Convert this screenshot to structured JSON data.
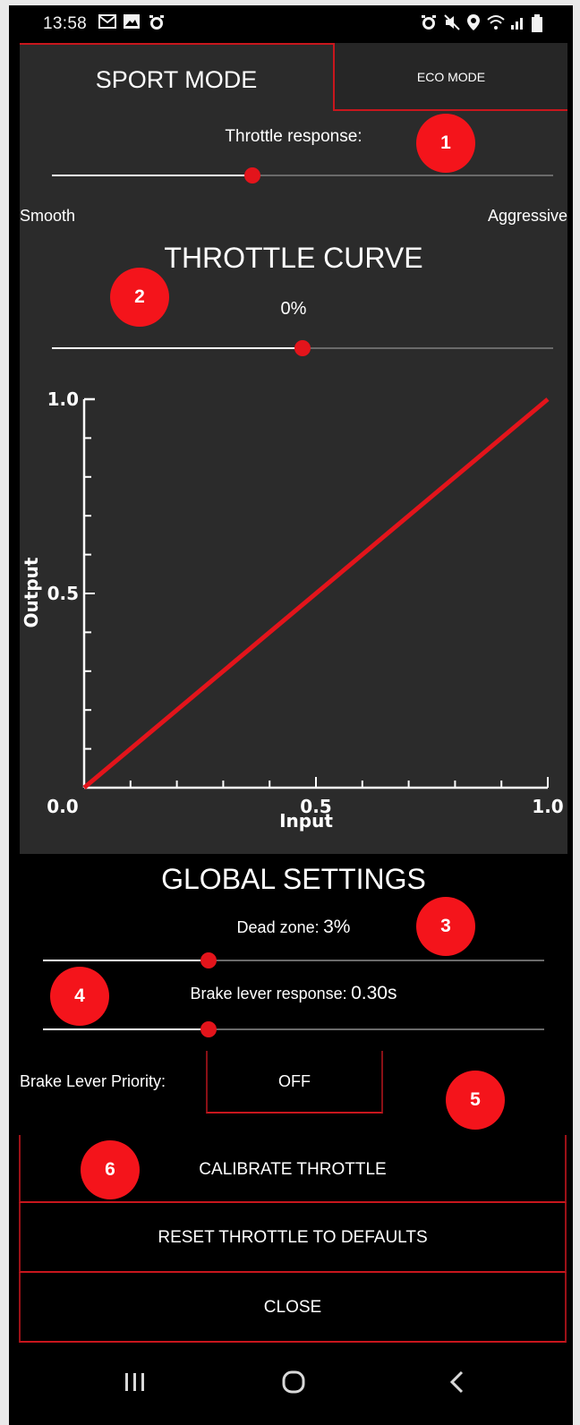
{
  "status_bar": {
    "time": "13:58",
    "left_icons": [
      "gmail-icon",
      "gallery-icon",
      "alarm-icon"
    ],
    "right_icons": [
      "alarm-icon",
      "mute-icon",
      "location-icon",
      "wifi-icon",
      "signal-icon",
      "battery-icon"
    ]
  },
  "tabs": [
    {
      "label": "SPORT MODE",
      "active": true
    },
    {
      "label": "ECO MODE",
      "active": false
    }
  ],
  "throttle_response": {
    "label": "Throttle response:",
    "value": 0.4,
    "min_label": "Smooth",
    "max_label": "Aggressive"
  },
  "throttle_curve": {
    "title": "THROTTLE CURVE",
    "value_text": "0%",
    "value": 0.5
  },
  "chart_data": {
    "type": "line",
    "title": "",
    "xlabel": "Input",
    "ylabel": "Output",
    "xlim": [
      0.0,
      1.0
    ],
    "ylim": [
      0.0,
      1.0
    ],
    "x_ticks": [
      "0.0",
      "0.5",
      "1.0"
    ],
    "y_ticks": [
      "0.0",
      "0.5",
      "1.0"
    ],
    "series": [
      {
        "x": [
          0.0,
          1.0
        ],
        "y": [
          0.0,
          1.0
        ],
        "color": "#e3141b"
      }
    ],
    "grid": false
  },
  "global_settings": {
    "title": "GLOBAL SETTINGS",
    "dead_zone_label": "Dead zone:",
    "dead_zone_value": "3%",
    "dead_zone_slider": 0.33,
    "brake_response_label": "Brake lever response:",
    "brake_response_value": "0.30s",
    "brake_response_slider": 0.33,
    "brake_priority_label": "Brake Lever Priority:",
    "brake_priority_value": "OFF"
  },
  "buttons": {
    "calibrate": "CALIBRATE THROTTLE",
    "reset": "RESET THROTTLE TO DEFAULTS",
    "close": "CLOSE"
  },
  "badges": [
    "1",
    "2",
    "3",
    "4",
    "5",
    "6"
  ],
  "colors": {
    "accent": "#e3141b",
    "badge": "#f4141b",
    "panel": "#2b2b2b"
  }
}
